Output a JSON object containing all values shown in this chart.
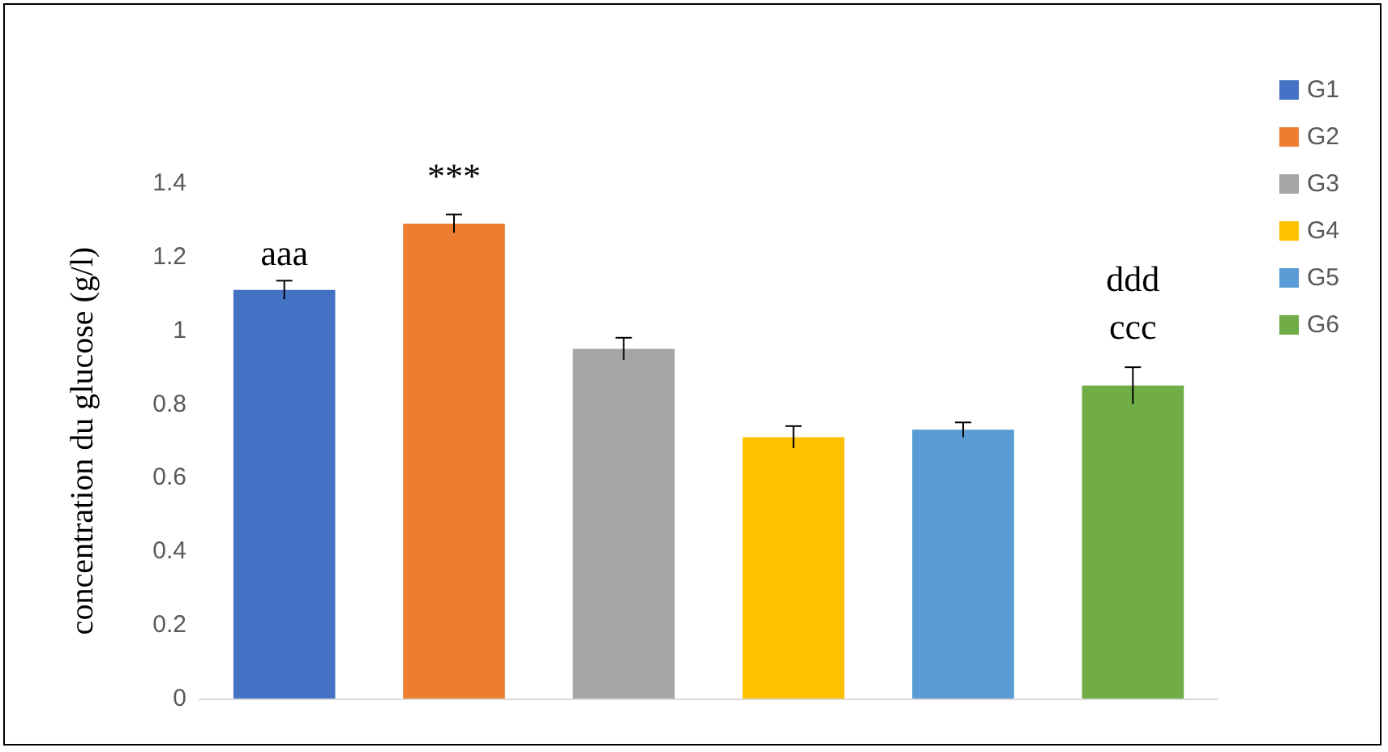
{
  "chart_data": {
    "type": "bar",
    "ylabel": "concentration du glucose (g/l)",
    "categories": [
      null,
      null,
      null,
      null,
      null,
      null
    ],
    "series": [
      {
        "name": "G1",
        "color": "#4472c4",
        "values": [
          1.11,
          null,
          null,
          null,
          null,
          null
        ],
        "errors": [
          0.025,
          null,
          null,
          null,
          null,
          null
        ]
      },
      {
        "name": "G2",
        "color": "#ed7d31",
        "values": [
          null,
          1.29,
          null,
          null,
          null,
          null
        ],
        "errors": [
          null,
          0.025,
          null,
          null,
          null,
          null
        ]
      },
      {
        "name": "G3",
        "color": "#a5a5a5",
        "values": [
          null,
          null,
          0.95,
          null,
          null,
          null
        ],
        "errors": [
          null,
          null,
          0.03,
          null,
          null,
          null
        ]
      },
      {
        "name": "G4",
        "color": "#ffc000",
        "values": [
          null,
          null,
          null,
          0.71,
          null,
          null
        ],
        "errors": [
          null,
          null,
          null,
          0.03,
          null,
          null
        ]
      },
      {
        "name": "G5",
        "color": "#5b9bd5",
        "values": [
          null,
          null,
          null,
          null,
          0.73,
          null
        ],
        "errors": [
          null,
          null,
          null,
          null,
          0.02,
          null
        ]
      },
      {
        "name": "G6",
        "color": "#70ad47",
        "values": [
          null,
          null,
          null,
          null,
          null,
          0.85
        ],
        "errors": [
          null,
          null,
          null,
          null,
          null,
          0.05
        ]
      }
    ],
    "ylim": [
      0,
      1.4
    ],
    "yticks": [
      0,
      0.2,
      0.4,
      0.6,
      0.8,
      1,
      1.2,
      1.4
    ],
    "tick_labels": "y",
    "grid": false,
    "legend": "right",
    "annotations": [
      "aaa",
      "***",
      "ddd",
      "ccc"
    ]
  }
}
